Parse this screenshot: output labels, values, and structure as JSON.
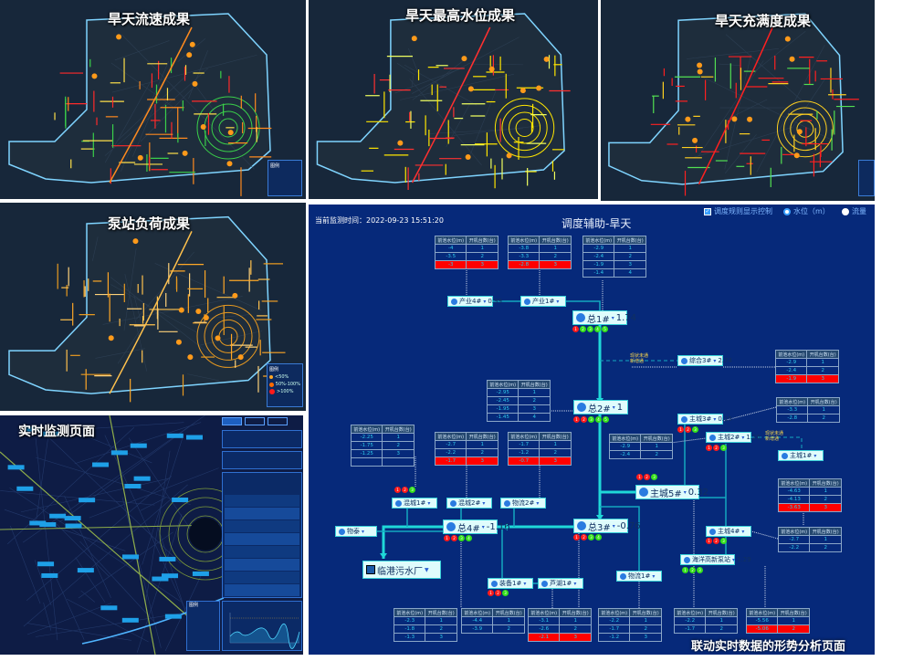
{
  "panels": {
    "flow_speed": {
      "title": "旱天流速成果",
      "pipe_colors": [
        "#ff2a2a",
        "#ff8a1e",
        "#3ad04a",
        "#ffe04a"
      ]
    },
    "max_level": {
      "title": "旱天最高水位成果",
      "pipe_colors": [
        "#ffe600",
        "#ff3030",
        "#ffe600",
        "#f0ff60"
      ]
    },
    "fullness": {
      "title": "旱天充满度成果",
      "pipe_colors": [
        "#ff2020",
        "#ff2020",
        "#ffd020",
        "#52e052"
      ]
    },
    "pump_load": {
      "title": "泵站负荷成果",
      "pipe_colors": [
        "#ffa726",
        "#ffc14d",
        "#e89a20",
        "#ffd27a"
      ]
    },
    "legend_title": "图例",
    "pump_legend": [
      "<50%",
      "50%-100%",
      ">100%"
    ],
    "plant_label": "临港污水厂"
  },
  "monitor": {
    "title": "实时监测页面",
    "legend_title": "图例"
  },
  "diagram": {
    "time_label": "当前监测时间：2022-09-23 15:51:20",
    "title": "调度辅助-旱天",
    "controls": {
      "rule_display": "调度规则显示控制",
      "rule_display_checked": true,
      "level": "水位（m）",
      "flow": "流量",
      "selected": "level"
    },
    "table_headers": [
      "前池水位(m)",
      "开机台数(台)"
    ],
    "tables": [
      {
        "rows": [
          [
            "-4",
            "1"
          ],
          [
            "-3.5",
            "2"
          ],
          [
            "-3",
            "3"
          ]
        ],
        "highlight": 2
      },
      {
        "rows": [
          [
            "-3.8",
            "1"
          ],
          [
            "-3.3",
            "2"
          ],
          [
            "-2.8",
            "3"
          ]
        ],
        "highlight": 2
      },
      {
        "rows": [
          [
            "-2.9",
            "1"
          ],
          [
            "-2.4",
            "2"
          ],
          [
            "-1.9",
            "3"
          ],
          [
            "-1.4",
            "4"
          ]
        ],
        "highlight": -1
      },
      {
        "rows": [
          [
            "-2.9",
            "1"
          ],
          [
            "-2.4",
            "2"
          ],
          [
            "-1.9",
            "3"
          ]
        ],
        "highlight": 2
      },
      {
        "rows": [
          [
            "-2.95",
            "1"
          ],
          [
            "-2.45",
            "2"
          ],
          [
            "-1.95",
            "3"
          ],
          [
            "-1.45",
            "4"
          ]
        ],
        "highlight": -1
      },
      {
        "rows": [
          [
            "-3.3",
            "1"
          ],
          [
            "-2.8",
            "2"
          ]
        ],
        "highlight": -1
      },
      {
        "rows": [
          [
            "-2.25",
            "1"
          ],
          [
            "-1.75",
            "2"
          ],
          [
            "-1.25",
            "3"
          ],
          [
            "",
            ""
          ]
        ],
        "highlight": -1
      },
      {
        "rows": [
          [
            "-2.7",
            "1"
          ],
          [
            "-2.2",
            "2"
          ],
          [
            "-1.7",
            "3"
          ]
        ],
        "highlight": 2
      },
      {
        "rows": [
          [
            "-1.7",
            "1"
          ],
          [
            "-1.2",
            "2"
          ],
          [
            "-0.7",
            "3"
          ]
        ],
        "highlight": 2
      },
      {
        "rows": [
          [
            "-2.9",
            "1"
          ],
          [
            "-2.4",
            "2"
          ]
        ],
        "highlight": -1
      },
      {
        "rows": [
          [
            "-4.63",
            "1"
          ],
          [
            "-4.13",
            "2"
          ],
          [
            "-3.63",
            "3"
          ]
        ],
        "highlight": 2
      },
      {
        "rows": [
          [
            "-2.7",
            "1"
          ],
          [
            "-2.2",
            "2"
          ]
        ],
        "highlight": -1
      },
      {
        "rows": [
          [
            "-2.3",
            "1"
          ],
          [
            "-1.8",
            "2"
          ],
          [
            "-1.3",
            "3"
          ]
        ],
        "highlight": -1
      },
      {
        "rows": [
          [
            "-4.4",
            "1"
          ],
          [
            "-3.9",
            "2"
          ]
        ],
        "highlight": -1
      },
      {
        "rows": [
          [
            "-3.1",
            "1"
          ],
          [
            "-2.6",
            "2"
          ],
          [
            "-2.1",
            "3"
          ]
        ],
        "highlight": 2
      },
      {
        "rows": [
          [
            "-2.2",
            "1"
          ],
          [
            "-1.7",
            "2"
          ],
          [
            "-1.2",
            "3"
          ]
        ],
        "highlight": -1
      },
      {
        "rows": [
          [
            "-2.2",
            "1"
          ],
          [
            "-1.7",
            "2"
          ]
        ],
        "highlight": -1
      },
      {
        "rows": [
          [
            "-5.56",
            "1"
          ],
          [
            "-5.06",
            "2"
          ]
        ],
        "highlight": 1
      }
    ],
    "stations": [
      {
        "name": "产业4#",
        "value": "0.99"
      },
      {
        "name": "产业1#",
        "value": ""
      },
      {
        "name": "总1#",
        "value": "1.74",
        "lights": [
          "red",
          "green",
          "green",
          "green",
          "green"
        ]
      },
      {
        "name": "综合3#",
        "value": "2.74"
      },
      {
        "name": "总2#",
        "value": "1",
        "lights": [
          "red",
          "red",
          "green",
          "green",
          "green"
        ]
      },
      {
        "name": "主城3#",
        "value": "0.15",
        "lights": [
          "red",
          "red",
          "green"
        ]
      },
      {
        "name": "主城2#",
        "value": "1.26",
        "lights": [
          "red",
          "red",
          "green"
        ]
      },
      {
        "name": "主城1#",
        "value": ""
      },
      {
        "name": "主城5#",
        "value": "0.32",
        "lights": [
          "red",
          "red",
          "green"
        ]
      },
      {
        "name": "混城1#",
        "value": "",
        "lights": [
          "red",
          "red",
          "green"
        ]
      },
      {
        "name": "混城2#",
        "value": ""
      },
      {
        "name": "物流2#",
        "value": ""
      },
      {
        "name": "总4#",
        "value": "-1.16",
        "lights": [
          "red",
          "red",
          "green",
          "green"
        ]
      },
      {
        "name": "总3#",
        "value": "-0.76",
        "lights": [
          "red",
          "red",
          "green",
          "green"
        ]
      },
      {
        "name": "主城4#",
        "value": "",
        "lights": [
          "red",
          "red",
          "green"
        ]
      },
      {
        "name": "物流1#",
        "value": ""
      },
      {
        "name": "海洋高新泵站",
        "value": "1.29",
        "lights": [
          "green",
          "green",
          "green"
        ]
      },
      {
        "name": "物泰",
        "value": ""
      },
      {
        "name": "装备1#",
        "value": "",
        "lights": [
          "red",
          "red",
          "green"
        ]
      },
      {
        "name": "芦湖1#",
        "value": ""
      }
    ],
    "plant": "临港污水厂",
    "notes": [
      "现状未通\n新增通",
      "现状未通\n新增通"
    ],
    "light_colors": {
      "red": "#ff1a1a",
      "green": "#35e01a"
    },
    "footer": "联动实时数据的形势分析页面"
  }
}
